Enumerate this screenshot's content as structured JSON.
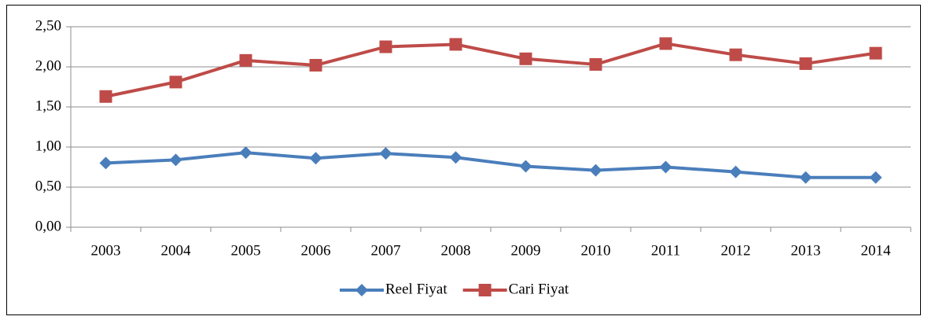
{
  "chart_data": {
    "type": "line",
    "categories": [
      "2003",
      "2004",
      "2005",
      "2006",
      "2007",
      "2008",
      "2009",
      "2010",
      "2011",
      "2012",
      "2013",
      "2014"
    ],
    "series": [
      {
        "name": "Reel Fiyat",
        "color": "#4a7ebb",
        "marker": "diamond",
        "values": [
          0.8,
          0.84,
          0.93,
          0.86,
          0.92,
          0.87,
          0.76,
          0.71,
          0.75,
          0.69,
          0.62,
          0.62
        ]
      },
      {
        "name": "Cari Fiyat",
        "color": "#be4b48",
        "marker": "square",
        "values": [
          1.63,
          1.81,
          2.08,
          2.02,
          2.25,
          2.28,
          2.1,
          2.03,
          2.29,
          2.15,
          2.04,
          2.17
        ]
      }
    ],
    "ylim": [
      0,
      2.5
    ],
    "yticks": [
      {
        "value": 0,
        "label": "0,00"
      },
      {
        "value": 0.5,
        "label": "0,50"
      },
      {
        "value": 1,
        "label": "1,00"
      },
      {
        "value": 1.5,
        "label": "1,50"
      },
      {
        "value": 2,
        "label": "2,00"
      },
      {
        "value": 2.5,
        "label": "2,50"
      }
    ],
    "grid": true,
    "legend": "bottom"
  }
}
